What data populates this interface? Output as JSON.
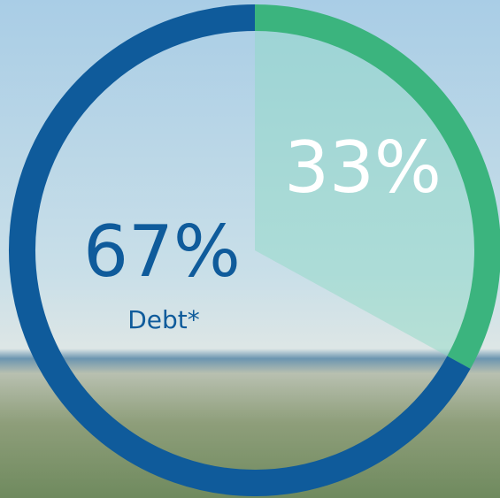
{
  "chart_data": {
    "type": "donut",
    "categories": [
      null,
      "Debt*"
    ],
    "values": [
      33,
      67
    ],
    "value_labels": [
      "33%",
      "67%"
    ],
    "colors": [
      "#3bb47e",
      "#0f5b9b"
    ]
  }
}
